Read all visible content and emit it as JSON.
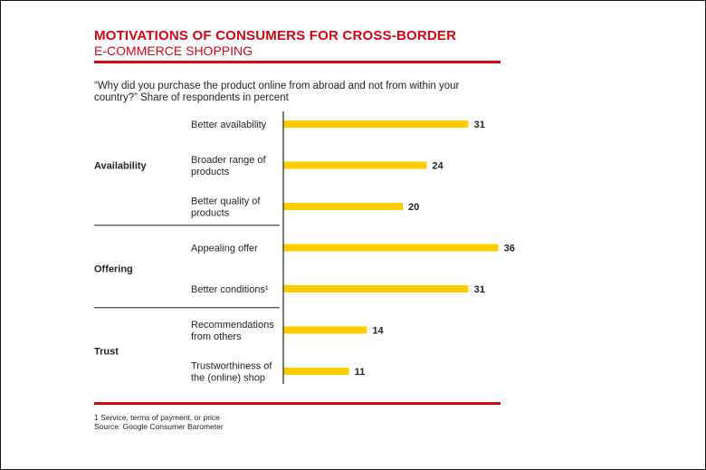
{
  "header": {
    "title": "MOTIVATIONS OF CONSUMERS FOR CROSS-BORDER",
    "subtitle": "E-COMMERCE SHOPPING",
    "question": "“Why did you purchase the product online from abroad and not from within your country?” Share of respondents in percent"
  },
  "colors": {
    "accent": "#d40511",
    "bar": "#ffcc00",
    "axis": "#222222"
  },
  "chart_data": {
    "type": "bar",
    "orientation": "horizontal",
    "groups": [
      {
        "name": "Availability",
        "items": [
          {
            "label": [
              "Better availability"
            ],
            "value": 31
          },
          {
            "label": [
              "Broader range of",
              "products"
            ],
            "value": 24
          },
          {
            "label": [
              "Better quality of",
              "products"
            ],
            "value": 20
          }
        ]
      },
      {
        "name": "Offering",
        "items": [
          {
            "label": [
              "Appealing offer"
            ],
            "value": 36
          },
          {
            "label": [
              "Better conditions¹"
            ],
            "value": 31
          }
        ]
      },
      {
        "name": "Trust",
        "items": [
          {
            "label": [
              "Recommendations",
              "from others"
            ],
            "value": 14
          },
          {
            "label": [
              "Trustworthiness of",
              "the (online) shop"
            ],
            "value": 11
          }
        ]
      }
    ],
    "xlim": [
      0,
      36
    ],
    "grid": false
  },
  "footer": {
    "note": "1 Service, terms of payment, or price",
    "source": "Source: Google Consumer Barometer"
  }
}
